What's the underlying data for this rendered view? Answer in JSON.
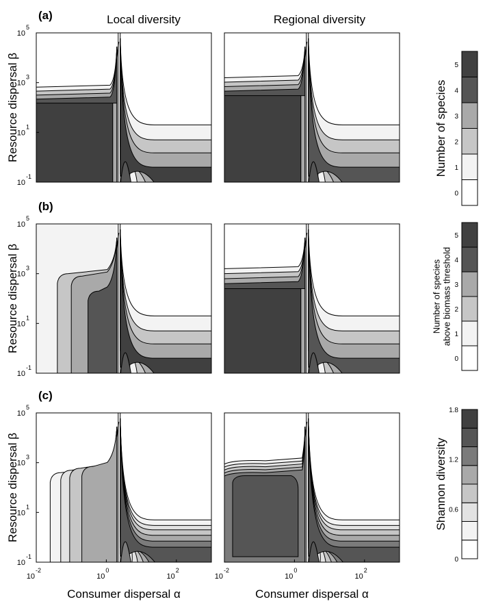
{
  "column_titles": [
    "Local diversity",
    "Regional diversity"
  ],
  "rows": [
    {
      "letter": "(a)",
      "ylabel": "Resource dispersal β",
      "colorbar_label": [
        "Number of species"
      ]
    },
    {
      "letter": "(b)",
      "ylabel": "Resource dispersal β",
      "colorbar_label": [
        "Number of species",
        "above biomass threshold"
      ]
    },
    {
      "letter": "(c)",
      "ylabel": "Resource dispersal β",
      "colorbar_label": [
        "Shannon diversity"
      ]
    }
  ],
  "xlabel": "Consumer dispersal α",
  "gray_levels": [
    "#ffffff",
    "#f3f3f3",
    "#e2e2e2",
    "#c6c6c6",
    "#a9a9a9",
    "#7b7b7b",
    "#555555",
    "#404040"
  ],
  "chart_data": [
    {
      "type": "heatmap",
      "panel": "(a)",
      "title": "Local diversity",
      "xlabel": "",
      "ylabel": "Resource dispersal β",
      "x_scale": "log",
      "y_scale": "log",
      "xlim": [
        0.01,
        1000
      ],
      "ylim": [
        0.1,
        100000
      ],
      "x_ticks": [],
      "y_ticks": [
        "10^-1",
        "10^1",
        "10^3",
        "10^5"
      ],
      "colorbar": {
        "label": "Number of species",
        "ticks": [
          0,
          1,
          2,
          3,
          4,
          5
        ],
        "range": [
          -0.5,
          5.5
        ]
      },
      "left_block": {
        "top": 150,
        "levels": [
          4,
          3,
          2,
          1
        ],
        "spacing": 0.16,
        "value_inside": 5
      },
      "vertical_lines": [
        2.0,
        2.5
      ],
      "right_region": {
        "background": 0,
        "plateaus": [
          20,
          5,
          1.5,
          0.4
        ],
        "diverge": [
          2.6,
          2.8,
          3.1,
          3.6
        ],
        "values": [
          1,
          2,
          3,
          5
        ],
        "base": 4
      },
      "dips": [
        {
          "x": 1.1,
          "y_range": [
            0.1,
            150
          ],
          "width_decades": 0.12,
          "value": 3
        },
        {
          "x": 0.6,
          "y_range": [
            0.1,
            250
          ],
          "width_decades": 0.5,
          "value": 5
        }
      ]
    },
    {
      "type": "heatmap",
      "panel": "(a)",
      "title": "Regional diversity",
      "xlabel": "",
      "ylabel": "",
      "x_scale": "log",
      "y_scale": "log",
      "xlim": [
        0.01,
        1000
      ],
      "ylim": [
        0.1,
        100000
      ],
      "x_ticks": [],
      "y_ticks": [],
      "colorbar": {
        "label": "Number of species",
        "ticks": [
          0,
          1,
          2,
          3,
          4,
          5
        ],
        "range": [
          -0.5,
          5.5
        ]
      },
      "left_block": {
        "top": 300,
        "levels": [
          4,
          3,
          2,
          1
        ],
        "spacing": 0.18,
        "value_inside": 5
      },
      "vertical_lines": [
        2.0,
        2.5
      ],
      "right_region": {
        "background": 0,
        "plateaus": [
          20,
          5,
          1.5,
          0.4
        ],
        "diverge": [
          2.6,
          2.8,
          3.1,
          3.6
        ],
        "values": [
          1,
          2,
          3,
          4
        ],
        "base": 4
      }
    },
    {
      "type": "heatmap",
      "panel": "(b)",
      "title": "",
      "xlabel": "",
      "ylabel": "Resource dispersal β",
      "x_scale": "log",
      "y_scale": "log",
      "xlim": [
        0.01,
        1000
      ],
      "ylim": [
        0.1,
        100000
      ],
      "x_ticks": [],
      "y_ticks": [
        "10^-1",
        "10^1",
        "10^3",
        "10^5"
      ],
      "colorbar": {
        "label": "Number of species above biomass threshold",
        "ticks": [
          0,
          1,
          2,
          3,
          4,
          5
        ],
        "range": [
          -0.5,
          5.5
        ]
      },
      "vertical_lines": [
        2.0,
        2.5
      ],
      "right_region": {
        "background": 0,
        "plateaus": [
          20,
          5,
          1.5,
          0.4
        ],
        "diverge": [
          2.6,
          2.8,
          3.1,
          3.6
        ],
        "values": [
          1,
          2,
          3,
          5
        ],
        "base": 4
      },
      "left_region": {
        "background": 1,
        "staircase": [
          {
            "x": 0.04,
            "top": 1000,
            "value": 2
          },
          {
            "x": 0.1,
            "top": 800,
            "value": 3
          },
          {
            "x": 0.3,
            "top": 200,
            "value": 4
          }
        ],
        "spike_value": 2
      }
    },
    {
      "type": "heatmap",
      "panel": "(b)",
      "title": "",
      "xlabel": "",
      "ylabel": "",
      "x_scale": "log",
      "y_scale": "log",
      "xlim": [
        0.01,
        1000
      ],
      "ylim": [
        0.1,
        100000
      ],
      "x_ticks": [],
      "y_ticks": [],
      "colorbar": {
        "label": "Number of species above biomass threshold",
        "ticks": [
          0,
          1,
          2,
          3,
          4,
          5
        ],
        "range": [
          -0.5,
          5.5
        ]
      },
      "left_block": {
        "top": 250,
        "levels": [
          4,
          3,
          2,
          1
        ],
        "spacing": 0.2,
        "value_inside": 5
      },
      "vertical_lines": [
        2.0,
        2.5
      ],
      "right_region": {
        "background": 0,
        "plateaus": [
          20,
          5,
          1.5,
          0.4
        ],
        "diverge": [
          2.6,
          2.8,
          3.1,
          3.6
        ],
        "values": [
          1,
          2,
          3,
          4
        ],
        "base": 4
      }
    },
    {
      "type": "heatmap",
      "panel": "(c)",
      "title": "",
      "xlabel": "Consumer dispersal α",
      "ylabel": "Resource dispersal β",
      "x_scale": "log",
      "y_scale": "log",
      "xlim": [
        0.01,
        1000
      ],
      "ylim": [
        0.1,
        100000
      ],
      "x_ticks": [
        "10^-2",
        "10^0",
        "10^2"
      ],
      "y_ticks": [
        "10^-1",
        "10^1",
        "10^3",
        "10^5"
      ],
      "colorbar": {
        "label": "Shannon diversity",
        "ticks": [
          0,
          0.6,
          1.2,
          1.8
        ],
        "range": [
          0,
          1.8
        ],
        "levels": 8
      },
      "vertical_lines": [
        2.0,
        2.5
      ],
      "right_region": {
        "background": 0,
        "plateaus": [
          5,
          3,
          2,
          1.2,
          0.7,
          0.4
        ],
        "diverge": [
          2.7,
          2.9,
          3.1,
          3.4,
          3.8,
          4.3
        ],
        "values": [
          1,
          2,
          3,
          4,
          5,
          6
        ],
        "base": 5
      },
      "left_region": {
        "background": 0,
        "staircase": [
          {
            "x": 0.025,
            "top": 400,
            "value": 1
          },
          {
            "x": 0.05,
            "top": 500,
            "value": 2
          },
          {
            "x": 0.09,
            "top": 600,
            "value": 3
          },
          {
            "x": 0.2,
            "top": 700,
            "value": 4
          }
        ],
        "spike_value": 3
      }
    },
    {
      "type": "heatmap",
      "panel": "(c)",
      "title": "",
      "xlabel": "Consumer dispersal α",
      "ylabel": "",
      "x_scale": "log",
      "y_scale": "log",
      "xlim": [
        0.01,
        1000
      ],
      "ylim": [
        0.1,
        100000
      ],
      "x_ticks": [
        "10^-2",
        "10^0",
        "10^2"
      ],
      "y_ticks": [],
      "colorbar": {
        "label": "Shannon diversity",
        "ticks": [
          0,
          0.6,
          1.2,
          1.8
        ],
        "range": [
          0,
          1.8
        ],
        "levels": 8
      },
      "left_block": {
        "top": 300,
        "levels": [
          5,
          4,
          3,
          2,
          1
        ],
        "spacing": 0.12,
        "value_inside": 6,
        "rounded": true
      },
      "vertical_lines": [
        2.0,
        2.5
      ],
      "right_region": {
        "background": 0,
        "plateaus": [
          5,
          3,
          2,
          1.2,
          0.7,
          0.4
        ],
        "diverge": [
          2.7,
          2.9,
          3.1,
          3.4,
          3.8,
          4.3
        ],
        "values": [
          1,
          2,
          3,
          4,
          5,
          6
        ],
        "base": 6
      }
    }
  ]
}
